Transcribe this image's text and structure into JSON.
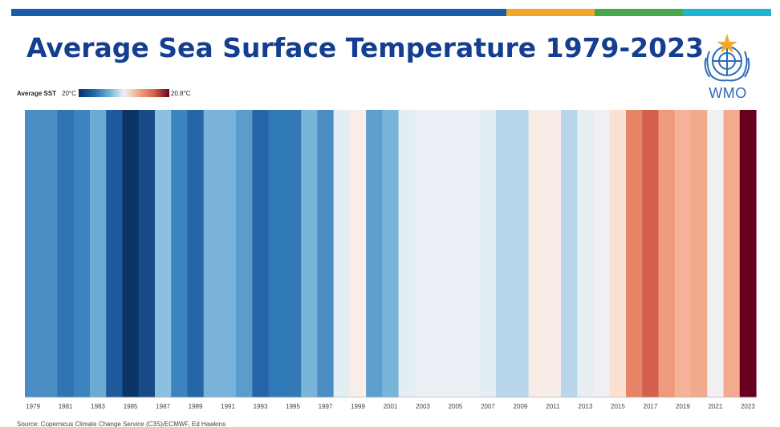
{
  "header": {
    "title": "Average Sea Surface Temperature 1979-2023"
  },
  "logo": {
    "text": "WMO",
    "icon": "un-emblem-icon",
    "color": "#2a6cb8"
  },
  "legend": {
    "label": "Average SST",
    "min_label": "20°C",
    "max_label": "20.8°C"
  },
  "footer": {
    "source": "Source: Copernicus Climate Change Service (C3S)/ECMWF, Ed Hawkins"
  },
  "colors": {
    "title": "#143e8f",
    "top_bar": [
      "#1a5aa8",
      "#f2a62a",
      "#46a84a",
      "#1fb5d1"
    ]
  },
  "chart_data": {
    "type": "heatmap",
    "title": "Average Sea Surface Temperature 1979-2023",
    "unit": "°C",
    "value_range": [
      20.0,
      20.8
    ],
    "colors_by_year": [
      {
        "year": 1979,
        "color": "#4a8cc4"
      },
      {
        "year": 1980,
        "color": "#4a8cc4"
      },
      {
        "year": 1981,
        "color": "#2f74b4"
      },
      {
        "year": 1982,
        "color": "#3b84c0"
      },
      {
        "year": 1983,
        "color": "#6aaad3"
      },
      {
        "year": 1984,
        "color": "#1f5a9c"
      },
      {
        "year": 1985,
        "color": "#0b3468"
      },
      {
        "year": 1986,
        "color": "#174b88"
      },
      {
        "year": 1987,
        "color": "#8dbfdf"
      },
      {
        "year": 1988,
        "color": "#3b84c0"
      },
      {
        "year": 1989,
        "color": "#2565a8"
      },
      {
        "year": 1990,
        "color": "#79b3da"
      },
      {
        "year": 1991,
        "color": "#79b3da"
      },
      {
        "year": 1992,
        "color": "#5a9ccc"
      },
      {
        "year": 1993,
        "color": "#2565a8"
      },
      {
        "year": 1994,
        "color": "#3079b8"
      },
      {
        "year": 1995,
        "color": "#3379b5"
      },
      {
        "year": 1996,
        "color": "#7ab4da"
      },
      {
        "year": 1997,
        "color": "#4a8cc4"
      },
      {
        "year": 1998,
        "color": "#e3edf4"
      },
      {
        "year": 1999,
        "color": "#f8ede9"
      },
      {
        "year": 2000,
        "color": "#5c9fcf"
      },
      {
        "year": 2001,
        "color": "#7ab4da"
      },
      {
        "year": 2002,
        "color": "#e3edf4"
      },
      {
        "year": 2003,
        "color": "#e9eff4"
      },
      {
        "year": 2004,
        "color": "#e9eff4"
      },
      {
        "year": 2005,
        "color": "#e9eff4"
      },
      {
        "year": 2006,
        "color": "#e9eff4"
      },
      {
        "year": 2007,
        "color": "#e3edf4"
      },
      {
        "year": 2008,
        "color": "#b8d6ea"
      },
      {
        "year": 2009,
        "color": "#b8d6ea"
      },
      {
        "year": 2010,
        "color": "#f8eae4"
      },
      {
        "year": 2011,
        "color": "#f6ebe5"
      },
      {
        "year": 2012,
        "color": "#b8d6ea"
      },
      {
        "year": 2013,
        "color": "#e6eef4"
      },
      {
        "year": 2014,
        "color": "#f0f0f2"
      },
      {
        "year": 2015,
        "color": "#fbe1d3"
      },
      {
        "year": 2016,
        "color": "#e68566"
      },
      {
        "year": 2017,
        "color": "#d6604d"
      },
      {
        "year": 2018,
        "color": "#ef9a7c"
      },
      {
        "year": 2019,
        "color": "#f4b399"
      },
      {
        "year": 2020,
        "color": "#f1aa8c"
      },
      {
        "year": 2021,
        "color": "#f0f0f2"
      },
      {
        "year": 2022,
        "color": "#f2ab8f"
      },
      {
        "year": 2023,
        "color": "#67001f"
      }
    ],
    "x_tick_labels": [
      "1979",
      "1981",
      "1983",
      "1985",
      "1987",
      "1989",
      "1991",
      "1993",
      "1995",
      "1997",
      "1999",
      "2001",
      "2003",
      "2005",
      "2007",
      "2009",
      "2011",
      "2013",
      "2015",
      "2017",
      "2019",
      "2021",
      "2023"
    ],
    "legend": "top-left",
    "grid": false
  }
}
